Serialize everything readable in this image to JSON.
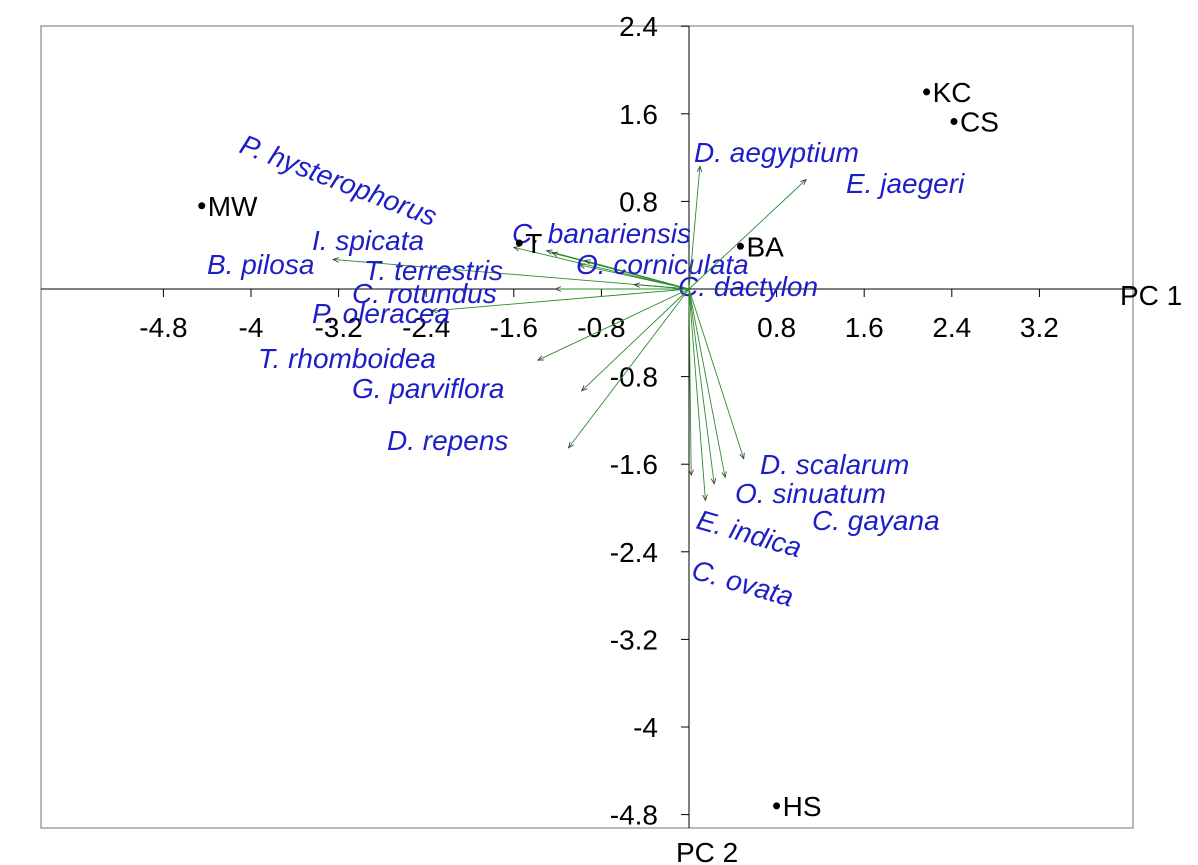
{
  "chart_data": {
    "type": "scatter",
    "title": "",
    "xlabel": "PC 1",
    "ylabel": "PC 2",
    "xlim": [
      -4.8,
      3.2
    ],
    "ylim": [
      -4.8,
      2.4
    ],
    "x_ticks": [
      "-4.8",
      "-4",
      "-3.2",
      "-2.4",
      "-1.6",
      "-0.8",
      "0.8",
      "1.6",
      "2.4",
      "3.2"
    ],
    "y_ticks": [
      "2.4",
      "1.6",
      "0.8",
      "-0.8",
      "-1.6",
      "-2.4",
      "-3.2",
      "-4",
      "-4.8"
    ],
    "grid": false,
    "sites": [
      {
        "name": "MW",
        "x": -4.45,
        "y": 0.76
      },
      {
        "name": "T",
        "x": -1.55,
        "y": 0.42
      },
      {
        "name": "BA",
        "x": 0.47,
        "y": 0.39
      },
      {
        "name": "KC",
        "x": 2.17,
        "y": 1.8
      },
      {
        "name": "CS",
        "x": 2.42,
        "y": 1.53
      },
      {
        "name": "HS",
        "x": 0.8,
        "y": -4.72
      }
    ],
    "species_vectors": [
      {
        "name": "P. hysterophorus",
        "x": -1.3,
        "y": 0.35
      },
      {
        "name": "I. spicata",
        "x": -1.6,
        "y": 0.38
      },
      {
        "name": "C. banariensis",
        "x": -1.25,
        "y": 0.33
      },
      {
        "name": "B. pilosa",
        "x": -3.25,
        "y": 0.27
      },
      {
        "name": "T. terrestris",
        "x": -1.0,
        "y": 0.22
      },
      {
        "name": "O. corniculata",
        "x": -0.95,
        "y": 0.26
      },
      {
        "name": "C. rotundus",
        "x": -1.22,
        "y": 0.0
      },
      {
        "name": "C. dactylon",
        "x": -0.5,
        "y": 0.04
      },
      {
        "name": "P. oleracea",
        "x": -2.35,
        "y": -0.2
      },
      {
        "name": "T. rhomboidea",
        "x": -1.38,
        "y": -0.65
      },
      {
        "name": "G. parviflora",
        "x": -0.98,
        "y": -0.93
      },
      {
        "name": "D. repens",
        "x": -1.1,
        "y": -1.45
      },
      {
        "name": "D. aegyptium",
        "x": 0.1,
        "y": 1.12
      },
      {
        "name": "E. jaegeri",
        "x": 1.07,
        "y": 1.0
      },
      {
        "name": "D. scalarum",
        "x": 0.5,
        "y": -1.55
      },
      {
        "name": "O. sinuatum",
        "x": 0.33,
        "y": -1.72
      },
      {
        "name": "C. gayana",
        "x": 0.23,
        "y": -1.78
      },
      {
        "name": "E. indica",
        "x": 0.15,
        "y": -1.93
      },
      {
        "name": "C. ovata",
        "x": 0.02,
        "y": -1.7
      }
    ],
    "legend": "none"
  },
  "colors": {
    "axis": "#000000",
    "frame": "#8a8a8a",
    "vector": "#2e8b2e",
    "species_text": "#1e1ec8",
    "site_point": "#000000"
  }
}
